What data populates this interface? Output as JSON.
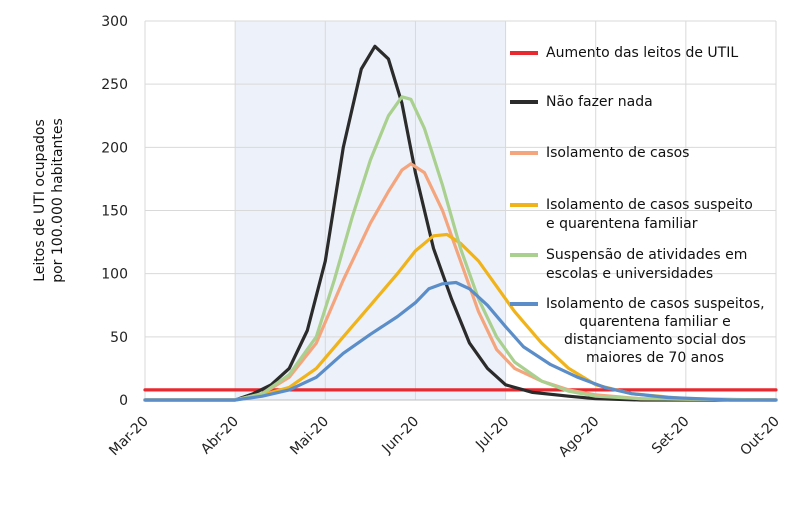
{
  "chart_data": {
    "type": "line",
    "title": "",
    "ylabel": "Leitos de UTI ocupados por 100.000 habitantes",
    "ylabel_lines": [
      "Leitos de UTI ocupados",
      "por 100.000 habitantes"
    ],
    "xlabel": "",
    "ylim": [
      0,
      300
    ],
    "y_ticks": [
      "0",
      "50",
      "100",
      "150",
      "200",
      "250",
      "300"
    ],
    "x_range": [
      0,
      7
    ],
    "x_tick_positions": [
      0,
      1,
      2,
      3,
      4,
      5,
      6,
      7
    ],
    "x_ticks": [
      "Mar-20",
      "Abr-20",
      "Mai-20",
      "Jun-20",
      "Jul-20",
      "Ago-20",
      "Set-20",
      "Out-20"
    ],
    "grid": true,
    "legend_position": "right",
    "shaded_period": {
      "from": 1,
      "to": 4,
      "color": "#edf2fa"
    },
    "series": [
      {
        "name": "Aumento das leitos de UTIL",
        "color": "#e8292f",
        "points": [
          [
            0,
            8
          ],
          [
            7,
            8
          ]
        ]
      },
      {
        "name": "Não fazer nada",
        "color": "#2b2b2b",
        "points": [
          [
            0,
            0
          ],
          [
            1,
            0
          ],
          [
            1.2,
            5
          ],
          [
            1.4,
            12
          ],
          [
            1.6,
            25
          ],
          [
            1.8,
            55
          ],
          [
            2.0,
            110
          ],
          [
            2.2,
            200
          ],
          [
            2.4,
            262
          ],
          [
            2.55,
            280
          ],
          [
            2.7,
            270
          ],
          [
            2.85,
            235
          ],
          [
            3.0,
            180
          ],
          [
            3.2,
            120
          ],
          [
            3.4,
            80
          ],
          [
            3.6,
            45
          ],
          [
            3.8,
            25
          ],
          [
            4.0,
            12
          ],
          [
            4.3,
            6
          ],
          [
            4.7,
            3
          ],
          [
            5.0,
            1
          ],
          [
            5.5,
            0
          ],
          [
            7.0,
            0
          ]
        ]
      },
      {
        "name": "Isolamento de casos",
        "color": "#f4a57e",
        "points": [
          [
            0,
            0
          ],
          [
            1,
            0
          ],
          [
            1.3,
            5
          ],
          [
            1.6,
            18
          ],
          [
            1.9,
            45
          ],
          [
            2.2,
            95
          ],
          [
            2.5,
            140
          ],
          [
            2.7,
            165
          ],
          [
            2.85,
            182
          ],
          [
            2.95,
            187
          ],
          [
            3.1,
            180
          ],
          [
            3.3,
            150
          ],
          [
            3.5,
            110
          ],
          [
            3.7,
            70
          ],
          [
            3.9,
            40
          ],
          [
            4.1,
            25
          ],
          [
            4.4,
            15
          ],
          [
            4.7,
            8
          ],
          [
            5.0,
            4
          ],
          [
            5.5,
            1
          ],
          [
            7.0,
            0
          ]
        ]
      },
      {
        "name": "Isolamento de casos suspeito e quarentena familiar",
        "color": "#f0b31a",
        "points": [
          [
            0,
            0
          ],
          [
            1,
            0
          ],
          [
            1.3,
            4
          ],
          [
            1.6,
            10
          ],
          [
            1.9,
            25
          ],
          [
            2.2,
            50
          ],
          [
            2.5,
            75
          ],
          [
            2.8,
            100
          ],
          [
            3.0,
            118
          ],
          [
            3.2,
            130
          ],
          [
            3.35,
            131
          ],
          [
            3.5,
            124
          ],
          [
            3.7,
            110
          ],
          [
            3.9,
            90
          ],
          [
            4.1,
            70
          ],
          [
            4.4,
            45
          ],
          [
            4.7,
            25
          ],
          [
            5.0,
            12
          ],
          [
            5.4,
            5
          ],
          [
            6.0,
            1
          ],
          [
            7.0,
            0
          ]
        ]
      },
      {
        "name": "Suspensão de atividades em escolas e universidades",
        "color": "#a9d08e",
        "points": [
          [
            0,
            0
          ],
          [
            1,
            0
          ],
          [
            1.3,
            5
          ],
          [
            1.6,
            20
          ],
          [
            1.9,
            50
          ],
          [
            2.1,
            95
          ],
          [
            2.3,
            145
          ],
          [
            2.5,
            190
          ],
          [
            2.7,
            225
          ],
          [
            2.85,
            240
          ],
          [
            2.95,
            238
          ],
          [
            3.1,
            215
          ],
          [
            3.3,
            170
          ],
          [
            3.5,
            120
          ],
          [
            3.7,
            80
          ],
          [
            3.9,
            50
          ],
          [
            4.1,
            30
          ],
          [
            4.4,
            15
          ],
          [
            4.7,
            7
          ],
          [
            5.0,
            3
          ],
          [
            5.5,
            1
          ],
          [
            7.0,
            0
          ]
        ]
      },
      {
        "name": "Isolamento de casos suspeitos, quarentena familiar e distanciamento social dos maiores de 70 anos",
        "color": "#5b8ec9",
        "points": [
          [
            0,
            0
          ],
          [
            1,
            0
          ],
          [
            1.3,
            3
          ],
          [
            1.6,
            8
          ],
          [
            1.9,
            18
          ],
          [
            2.2,
            37
          ],
          [
            2.5,
            52
          ],
          [
            2.8,
            66
          ],
          [
            3.0,
            77
          ],
          [
            3.15,
            88
          ],
          [
            3.3,
            92
          ],
          [
            3.45,
            93
          ],
          [
            3.6,
            88
          ],
          [
            3.8,
            75
          ],
          [
            4.0,
            58
          ],
          [
            4.2,
            42
          ],
          [
            4.5,
            28
          ],
          [
            4.8,
            18
          ],
          [
            5.1,
            10
          ],
          [
            5.4,
            5
          ],
          [
            5.8,
            2
          ],
          [
            6.5,
            0
          ],
          [
            7.0,
            0
          ]
        ]
      }
    ]
  }
}
